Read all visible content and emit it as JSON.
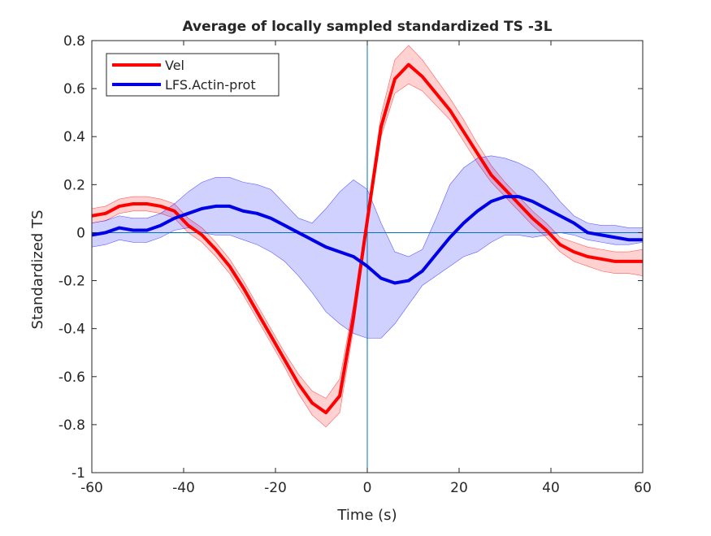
{
  "chart_data": {
    "type": "line",
    "title": "Average of locally sampled standardized TS -3L",
    "xlabel": "Time (s)",
    "ylabel": "Standardized TS",
    "xlim": [
      -60,
      60
    ],
    "ylim": [
      -1,
      0.8
    ],
    "xticks": [
      -60,
      -40,
      -20,
      0,
      20,
      40,
      60
    ],
    "yticks": [
      -1,
      -0.8,
      -0.6,
      -0.4,
      -0.2,
      0,
      0.2,
      0.4,
      0.6,
      0.8
    ],
    "xtick_labels": [
      "-60",
      "-40",
      "-20",
      "0",
      "20",
      "40",
      "60"
    ],
    "ytick_labels": [
      "-1",
      "-0.8",
      "-0.6",
      "-0.4",
      "-0.2",
      "0",
      "0.2",
      "0.4",
      "0.6",
      "0.8"
    ],
    "grid": false,
    "legend_position": "top-left",
    "reference_lines": {
      "x": 0,
      "y": 0,
      "color": "#0072BD"
    },
    "series": [
      {
        "name": "Vel",
        "color": "#ff0000",
        "band_color": "#ff0000",
        "x": [
          -60,
          -57,
          -54,
          -51,
          -48,
          -45,
          -42,
          -39,
          -36,
          -33,
          -30,
          -27,
          -24,
          -21,
          -18,
          -15,
          -12,
          -9,
          -6,
          -3,
          0,
          3,
          6,
          9,
          12,
          15,
          18,
          21,
          24,
          27,
          30,
          33,
          36,
          39,
          42,
          45,
          48,
          51,
          54,
          57,
          60
        ],
        "values": [
          0.07,
          0.08,
          0.11,
          0.12,
          0.12,
          0.11,
          0.09,
          0.03,
          -0.01,
          -0.07,
          -0.14,
          -0.23,
          -0.33,
          -0.43,
          -0.53,
          -0.63,
          -0.71,
          -0.75,
          -0.68,
          -0.35,
          0.05,
          0.44,
          0.64,
          0.7,
          0.65,
          0.58,
          0.51,
          0.42,
          0.33,
          0.24,
          0.18,
          0.12,
          0.06,
          0.01,
          -0.05,
          -0.08,
          -0.1,
          -0.11,
          -0.12,
          -0.12,
          -0.12
        ],
        "lower": [
          0.04,
          0.05,
          0.08,
          0.09,
          0.09,
          0.08,
          0.06,
          0.0,
          -0.04,
          -0.1,
          -0.17,
          -0.26,
          -0.36,
          -0.46,
          -0.56,
          -0.67,
          -0.76,
          -0.81,
          -0.75,
          -0.4,
          0.02,
          0.4,
          0.58,
          0.62,
          0.59,
          0.53,
          0.47,
          0.38,
          0.29,
          0.21,
          0.15,
          0.09,
          0.03,
          -0.02,
          -0.08,
          -0.12,
          -0.14,
          -0.16,
          -0.17,
          -0.17,
          -0.18
        ],
        "upper": [
          0.1,
          0.11,
          0.14,
          0.15,
          0.15,
          0.14,
          0.12,
          0.06,
          0.02,
          -0.04,
          -0.11,
          -0.2,
          -0.3,
          -0.4,
          -0.5,
          -0.59,
          -0.66,
          -0.69,
          -0.61,
          -0.3,
          0.09,
          0.49,
          0.72,
          0.78,
          0.72,
          0.64,
          0.56,
          0.47,
          0.37,
          0.28,
          0.21,
          0.15,
          0.09,
          0.04,
          -0.02,
          -0.04,
          -0.06,
          -0.07,
          -0.08,
          -0.08,
          -0.07
        ]
      },
      {
        "name": "LFS.Actin-prot",
        "color": "#0000e6",
        "band_color": "#0000ff",
        "x": [
          -60,
          -57,
          -54,
          -51,
          -48,
          -45,
          -42,
          -39,
          -36,
          -33,
          -30,
          -27,
          -24,
          -21,
          -18,
          -15,
          -12,
          -9,
          -6,
          -3,
          0,
          3,
          6,
          9,
          12,
          15,
          18,
          21,
          24,
          27,
          30,
          33,
          36,
          39,
          42,
          45,
          48,
          51,
          54,
          57,
          60
        ],
        "values": [
          -0.01,
          0.0,
          0.02,
          0.01,
          0.01,
          0.03,
          0.06,
          0.08,
          0.1,
          0.11,
          0.11,
          0.09,
          0.08,
          0.06,
          0.03,
          0.0,
          -0.03,
          -0.06,
          -0.08,
          -0.1,
          -0.14,
          -0.19,
          -0.21,
          -0.2,
          -0.16,
          -0.09,
          -0.02,
          0.04,
          0.09,
          0.13,
          0.15,
          0.15,
          0.13,
          0.1,
          0.07,
          0.04,
          0.0,
          -0.01,
          -0.02,
          -0.03,
          -0.03
        ],
        "lower": [
          -0.06,
          -0.05,
          -0.03,
          -0.04,
          -0.04,
          -0.02,
          0.01,
          0.02,
          0.0,
          -0.01,
          -0.01,
          -0.03,
          -0.05,
          -0.08,
          -0.12,
          -0.18,
          -0.25,
          -0.33,
          -0.38,
          -0.42,
          -0.44,
          -0.44,
          -0.38,
          -0.3,
          -0.22,
          -0.18,
          -0.14,
          -0.1,
          -0.08,
          -0.04,
          -0.01,
          -0.01,
          -0.02,
          -0.01,
          0.0,
          -0.01,
          -0.03,
          -0.04,
          -0.05,
          -0.05,
          -0.04
        ],
        "upper": [
          0.04,
          0.05,
          0.07,
          0.06,
          0.06,
          0.08,
          0.12,
          0.17,
          0.21,
          0.23,
          0.23,
          0.21,
          0.2,
          0.18,
          0.12,
          0.06,
          0.04,
          0.1,
          0.17,
          0.22,
          0.18,
          0.04,
          -0.08,
          -0.1,
          -0.07,
          0.06,
          0.2,
          0.27,
          0.31,
          0.32,
          0.31,
          0.29,
          0.26,
          0.2,
          0.13,
          0.07,
          0.04,
          0.03,
          0.03,
          0.02,
          0.02
        ]
      }
    ]
  }
}
